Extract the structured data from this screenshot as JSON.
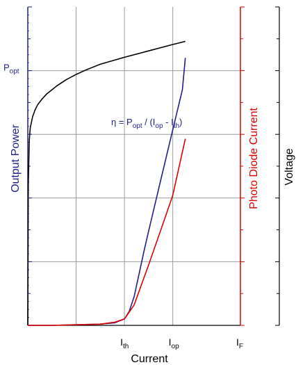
{
  "chart_data": {
    "type": "line",
    "title": "",
    "xlabel": "Current",
    "ylabel_left": "Output Power",
    "ylabel_right_inner": "Photo Diode Current",
    "ylabel_right_outer": "Voltage",
    "x_ticks": [
      {
        "main": "I",
        "sub": "th",
        "x": 1.0
      },
      {
        "main": "I",
        "sub": "op",
        "x": 2.0
      },
      {
        "main": "I",
        "sub": "F",
        "x": 3.4
      }
    ],
    "y_ticks_left": [
      {
        "main": "P",
        "sub": "opt",
        "y": 4.0
      }
    ],
    "annotation": {
      "eta": "η = P",
      "sub1": "opt",
      "mid": " / (I",
      "sub2": "op",
      "dash": " - I",
      "sub3": "th",
      "end": ")"
    },
    "xlim": [
      -1.0,
      3.4
    ],
    "ylim": [
      0,
      5
    ],
    "grid": true,
    "colors": {
      "axis_left": "#1e1e8c",
      "axis_right": "#dd0000",
      "voltage": "#000000",
      "power": "#1e1e8c",
      "photodiode": "#dd0000",
      "grid": "#9a9a9a"
    },
    "series": [
      {
        "key": "voltage",
        "x": [
          -1.0,
          -0.99,
          -0.97,
          -0.95,
          -0.9,
          -0.85,
          -0.8,
          -0.7,
          -0.6,
          -0.5,
          -0.4,
          -0.2,
          0.0,
          0.2,
          0.5,
          1.0,
          1.5,
          2.0,
          2.26
        ],
        "y": [
          0.0,
          2.2,
          2.9,
          3.1,
          3.28,
          3.38,
          3.46,
          3.56,
          3.64,
          3.7,
          3.76,
          3.86,
          3.94,
          4.01,
          4.1,
          4.21,
          4.31,
          4.41,
          4.46
        ]
      },
      {
        "key": "power",
        "x": [
          -1.0,
          -0.5,
          0.0,
          0.5,
          0.8,
          1.0,
          1.1,
          1.2,
          1.3,
          1.4,
          1.5,
          1.7,
          2.0,
          2.2,
          2.26
        ],
        "y": [
          0.0,
          0.0,
          0.01,
          0.02,
          0.04,
          0.1,
          0.22,
          0.45,
          0.8,
          1.15,
          1.48,
          2.12,
          3.07,
          3.7,
          4.2
        ]
      },
      {
        "key": "photodiode",
        "x": [
          -1.0,
          -0.5,
          0.0,
          0.5,
          0.8,
          1.0,
          1.2,
          1.5,
          1.8,
          2.0,
          2.26
        ],
        "y": [
          0.0,
          0.0,
          0.01,
          0.02,
          0.05,
          0.1,
          0.32,
          0.95,
          1.6,
          2.04,
          2.93
        ]
      }
    ]
  }
}
